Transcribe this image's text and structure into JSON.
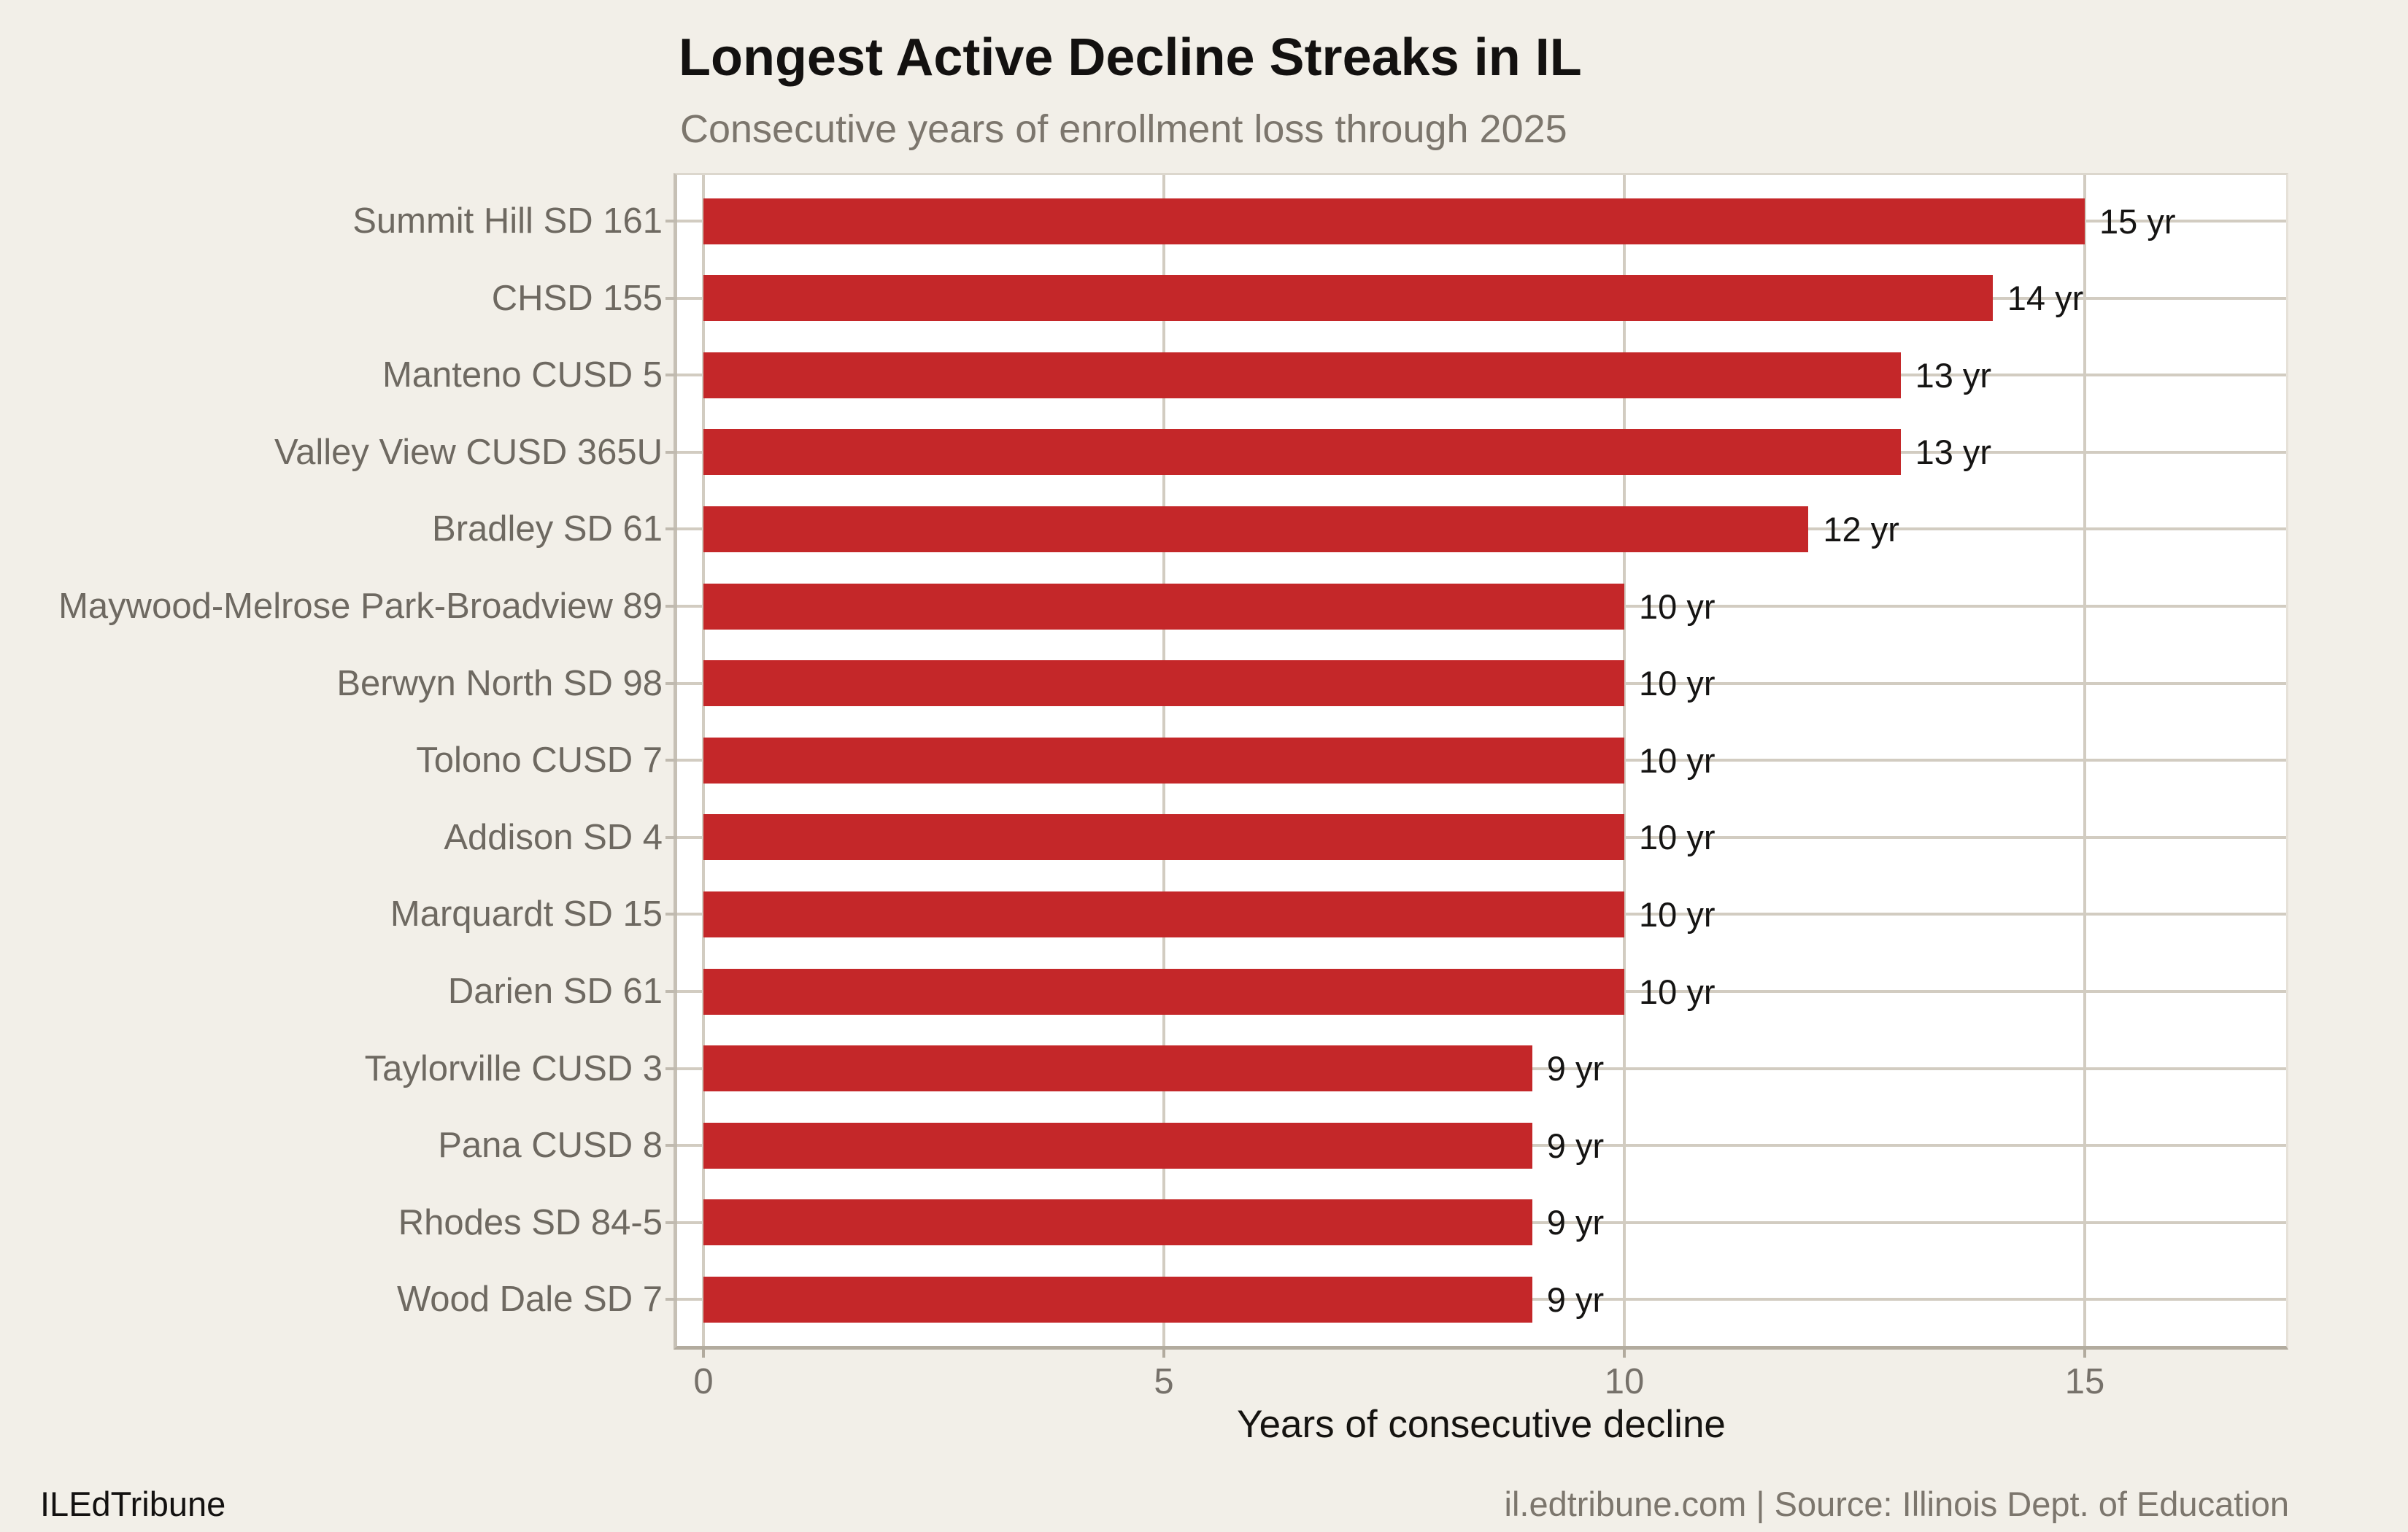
{
  "chart_data": {
    "type": "bar",
    "orientation": "horizontal",
    "title": "Longest Active Decline Streaks in IL",
    "subtitle": "Consecutive years of enrollment loss through 2025",
    "xlabel": "Years of consecutive decline",
    "categories": [
      "Summit Hill SD 161",
      "CHSD 155",
      "Manteno CUSD 5",
      "Valley View CUSD 365U",
      "Bradley SD 61",
      "Maywood-Melrose Park-Broadview 89",
      "Berwyn North SD 98",
      "Tolono CUSD 7",
      "Addison SD 4",
      "Marquardt SD 15",
      "Darien SD 61",
      "Taylorville CUSD 3",
      "Pana CUSD 8",
      "Rhodes SD 84-5",
      "Wood Dale SD 7"
    ],
    "values": [
      15,
      14,
      13,
      13,
      12,
      10,
      10,
      10,
      10,
      10,
      10,
      9,
      9,
      9,
      9
    ],
    "bar_labels": [
      "15 yr",
      "14 yr",
      "13 yr",
      "13 yr",
      "12 yr",
      "10 yr",
      "10 yr",
      "10 yr",
      "10 yr",
      "10 yr",
      "10 yr",
      "9 yr",
      "9 yr",
      "9 yr",
      "9 yr"
    ],
    "x_ticks": [
      "0",
      "5",
      "10",
      "15"
    ],
    "x_tick_values": [
      0,
      5,
      10,
      15
    ],
    "xlim": [
      -0.29,
      17.2
    ],
    "grid": true,
    "legend": false,
    "bar_color": "#C42729"
  },
  "footer": {
    "left": "ILEdTribune",
    "right": "il.edtribune.com | Source: Illinois Dept. of Education"
  },
  "colors": {
    "background": "#F2EFE8",
    "panel": "#FFFFFF",
    "bar": "#C42729",
    "gridline": "#D2CCC1",
    "axis_line": "#B2AB9E",
    "category_label": "#6E6961",
    "tick_label": "#76716A",
    "value_label": "#151413",
    "title": "#131110",
    "subtitle": "#7C766D"
  }
}
